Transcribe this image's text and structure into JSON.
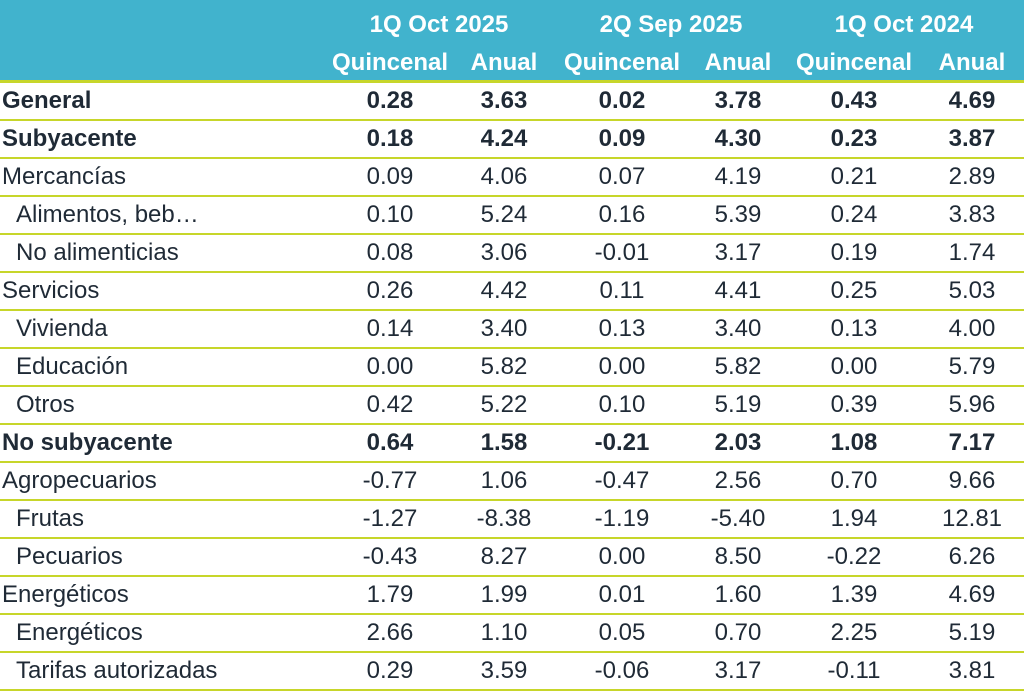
{
  "header": {
    "periods": [
      "1Q Oct 2025",
      "2Q Sep 2025",
      "1Q Oct 2024"
    ],
    "subheaders": [
      "Quincenal",
      "Anual",
      "Quincenal",
      "Anual",
      "Quincenal",
      "Anual"
    ]
  },
  "colors": {
    "header_bg": "#41b3cd",
    "rule": "#c7d62a",
    "text": "#1f2a36"
  },
  "rows": [
    {
      "label": "General",
      "bold": true,
      "indent": false,
      "values": [
        "0.28",
        "3.63",
        "0.02",
        "3.78",
        "0.43",
        "4.69"
      ]
    },
    {
      "label": "Subyacente",
      "bold": true,
      "indent": false,
      "values": [
        "0.18",
        "4.24",
        "0.09",
        "4.30",
        "0.23",
        "3.87"
      ]
    },
    {
      "label": "Mercancías",
      "bold": false,
      "indent": false,
      "values": [
        "0.09",
        "4.06",
        "0.07",
        "4.19",
        "0.21",
        "2.89"
      ]
    },
    {
      "label": "Alimentos, beb…",
      "bold": false,
      "indent": true,
      "values": [
        "0.10",
        "5.24",
        "0.16",
        "5.39",
        "0.24",
        "3.83"
      ]
    },
    {
      "label": "No alimenticias",
      "bold": false,
      "indent": true,
      "values": [
        "0.08",
        "3.06",
        "-0.01",
        "3.17",
        "0.19",
        "1.74"
      ]
    },
    {
      "label": "Servicios",
      "bold": false,
      "indent": false,
      "values": [
        "0.26",
        "4.42",
        "0.11",
        "4.41",
        "0.25",
        "5.03"
      ]
    },
    {
      "label": "Vivienda",
      "bold": false,
      "indent": true,
      "values": [
        "0.14",
        "3.40",
        "0.13",
        "3.40",
        "0.13",
        "4.00"
      ]
    },
    {
      "label": "Educación",
      "bold": false,
      "indent": true,
      "values": [
        "0.00",
        "5.82",
        "0.00",
        "5.82",
        "0.00",
        "5.79"
      ]
    },
    {
      "label": "Otros",
      "bold": false,
      "indent": true,
      "values": [
        "0.42",
        "5.22",
        "0.10",
        "5.19",
        "0.39",
        "5.96"
      ]
    },
    {
      "label": "No subyacente",
      "bold": true,
      "indent": false,
      "values": [
        "0.64",
        "1.58",
        "-0.21",
        "2.03",
        "1.08",
        "7.17"
      ]
    },
    {
      "label": "Agropecuarios",
      "bold": false,
      "indent": false,
      "values": [
        "-0.77",
        "1.06",
        "-0.47",
        "2.56",
        "0.70",
        "9.66"
      ]
    },
    {
      "label": "Frutas",
      "bold": false,
      "indent": true,
      "values": [
        "-1.27",
        "-8.38",
        "-1.19",
        "-5.40",
        "1.94",
        "12.81"
      ]
    },
    {
      "label": "Pecuarios",
      "bold": false,
      "indent": true,
      "values": [
        "-0.43",
        "8.27",
        "0.00",
        "8.50",
        "-0.22",
        "6.26"
      ]
    },
    {
      "label": "Energéticos",
      "bold": false,
      "indent": false,
      "values": [
        "1.79",
        "1.99",
        "0.01",
        "1.60",
        "1.39",
        "4.69"
      ]
    },
    {
      "label": "Energéticos",
      "bold": false,
      "indent": true,
      "values": [
        "2.66",
        "1.10",
        "0.05",
        "0.70",
        "2.25",
        "5.19"
      ]
    },
    {
      "label": "Tarifas autorizadas",
      "bold": false,
      "indent": true,
      "values": [
        "0.29",
        "3.59",
        "-0.06",
        "3.17",
        "-0.11",
        "3.81"
      ]
    }
  ]
}
